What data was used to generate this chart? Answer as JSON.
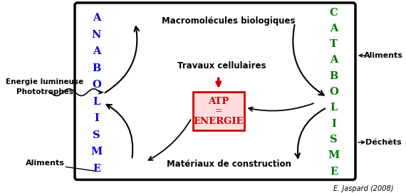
{
  "bg_color": "#ffffff",
  "box_color": "#000000",
  "anabolisme_color": "#0000cc",
  "catabolisme_color": "#007700",
  "red_arrow_color": "#cc0000",
  "atp_box_bg": "#ffdddd",
  "atp_box_border": "#cc0000",
  "atp_text_color": "#cc0000",
  "label_color": "#000000",
  "anabolisme_letters": [
    "A",
    "N",
    "A",
    "B",
    "O",
    "L",
    "I",
    "S",
    "M",
    "E"
  ],
  "catabolisme_letters": [
    "C",
    "A",
    "T",
    "A",
    "B",
    "O",
    "L",
    "I",
    "S",
    "M",
    "E"
  ],
  "top_label": "Macromolécules biologiques",
  "bottom_label": "Matériaux de construction",
  "center_label": "Travaux cellulaires",
  "atp_line1": "ATP",
  "atp_line2": "=",
  "atp_line3": "ENERGIE",
  "left_label1": "Energie lumineuse",
  "left_label2": "Phototrophes",
  "aliments_left": "Aliments",
  "aliments_right": "Aliments",
  "dechets": "Déchèts",
  "credit": "E. Jaspard (2008)"
}
